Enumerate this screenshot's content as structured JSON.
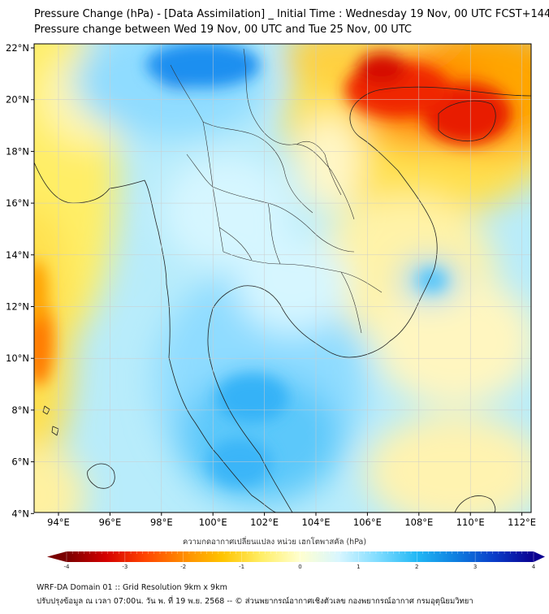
{
  "title_line1": "Pressure Change (hPa) - [Data Assimilation] _ Initial Time : Wednesday 19 Nov, 00 UTC FCST+144",
  "title_line2": "Pressure change between Wed 19 Nov, 00 UTC and Tue 25 Nov, 00 UTC",
  "lon_labels": [
    "94°E",
    "96°E",
    "98°E",
    "100°E",
    "102°E",
    "104°E",
    "106°E",
    "108°E",
    "110°E",
    "112°E"
  ],
  "lat_labels": [
    "22°N",
    "20°N",
    "18°N",
    "16°N",
    "14°N",
    "12°N",
    "10°N",
    "8°N",
    "6°N",
    "4°N"
  ],
  "colorbar": {
    "label": "ความกดอากาศเปลี่ยนแปลง หน่วย เฮกโตพาสคัล (hPa)",
    "ticks": [
      "-4",
      "-3",
      "-2",
      "-1",
      "0",
      "1",
      "2",
      "3",
      "4"
    ],
    "min": -4,
    "max": 4,
    "colors": [
      "#7a0000",
      "#d40000",
      "#ff4400",
      "#ff8c00",
      "#ffc400",
      "#ffee66",
      "#ffffd0",
      "#d8f6ff",
      "#7fdcff",
      "#22b8f5",
      "#0e7fe0",
      "#0a3cc8",
      "#0a0090"
    ]
  },
  "footer_line1": "WRF-DA Domain 01 :: Grid Resolution 9km x 9km",
  "footer_line2": "ปรับปรุงข้อมูล ณ เวลา 07:00น. วัน พ. ที่ 19 พ.ย. 2568 -- © ส่วนพยากรณ์อากาศเชิงตัวเลข กองพยากรณ์อากาศ กรมอุตุนิยมวิทยา"
}
